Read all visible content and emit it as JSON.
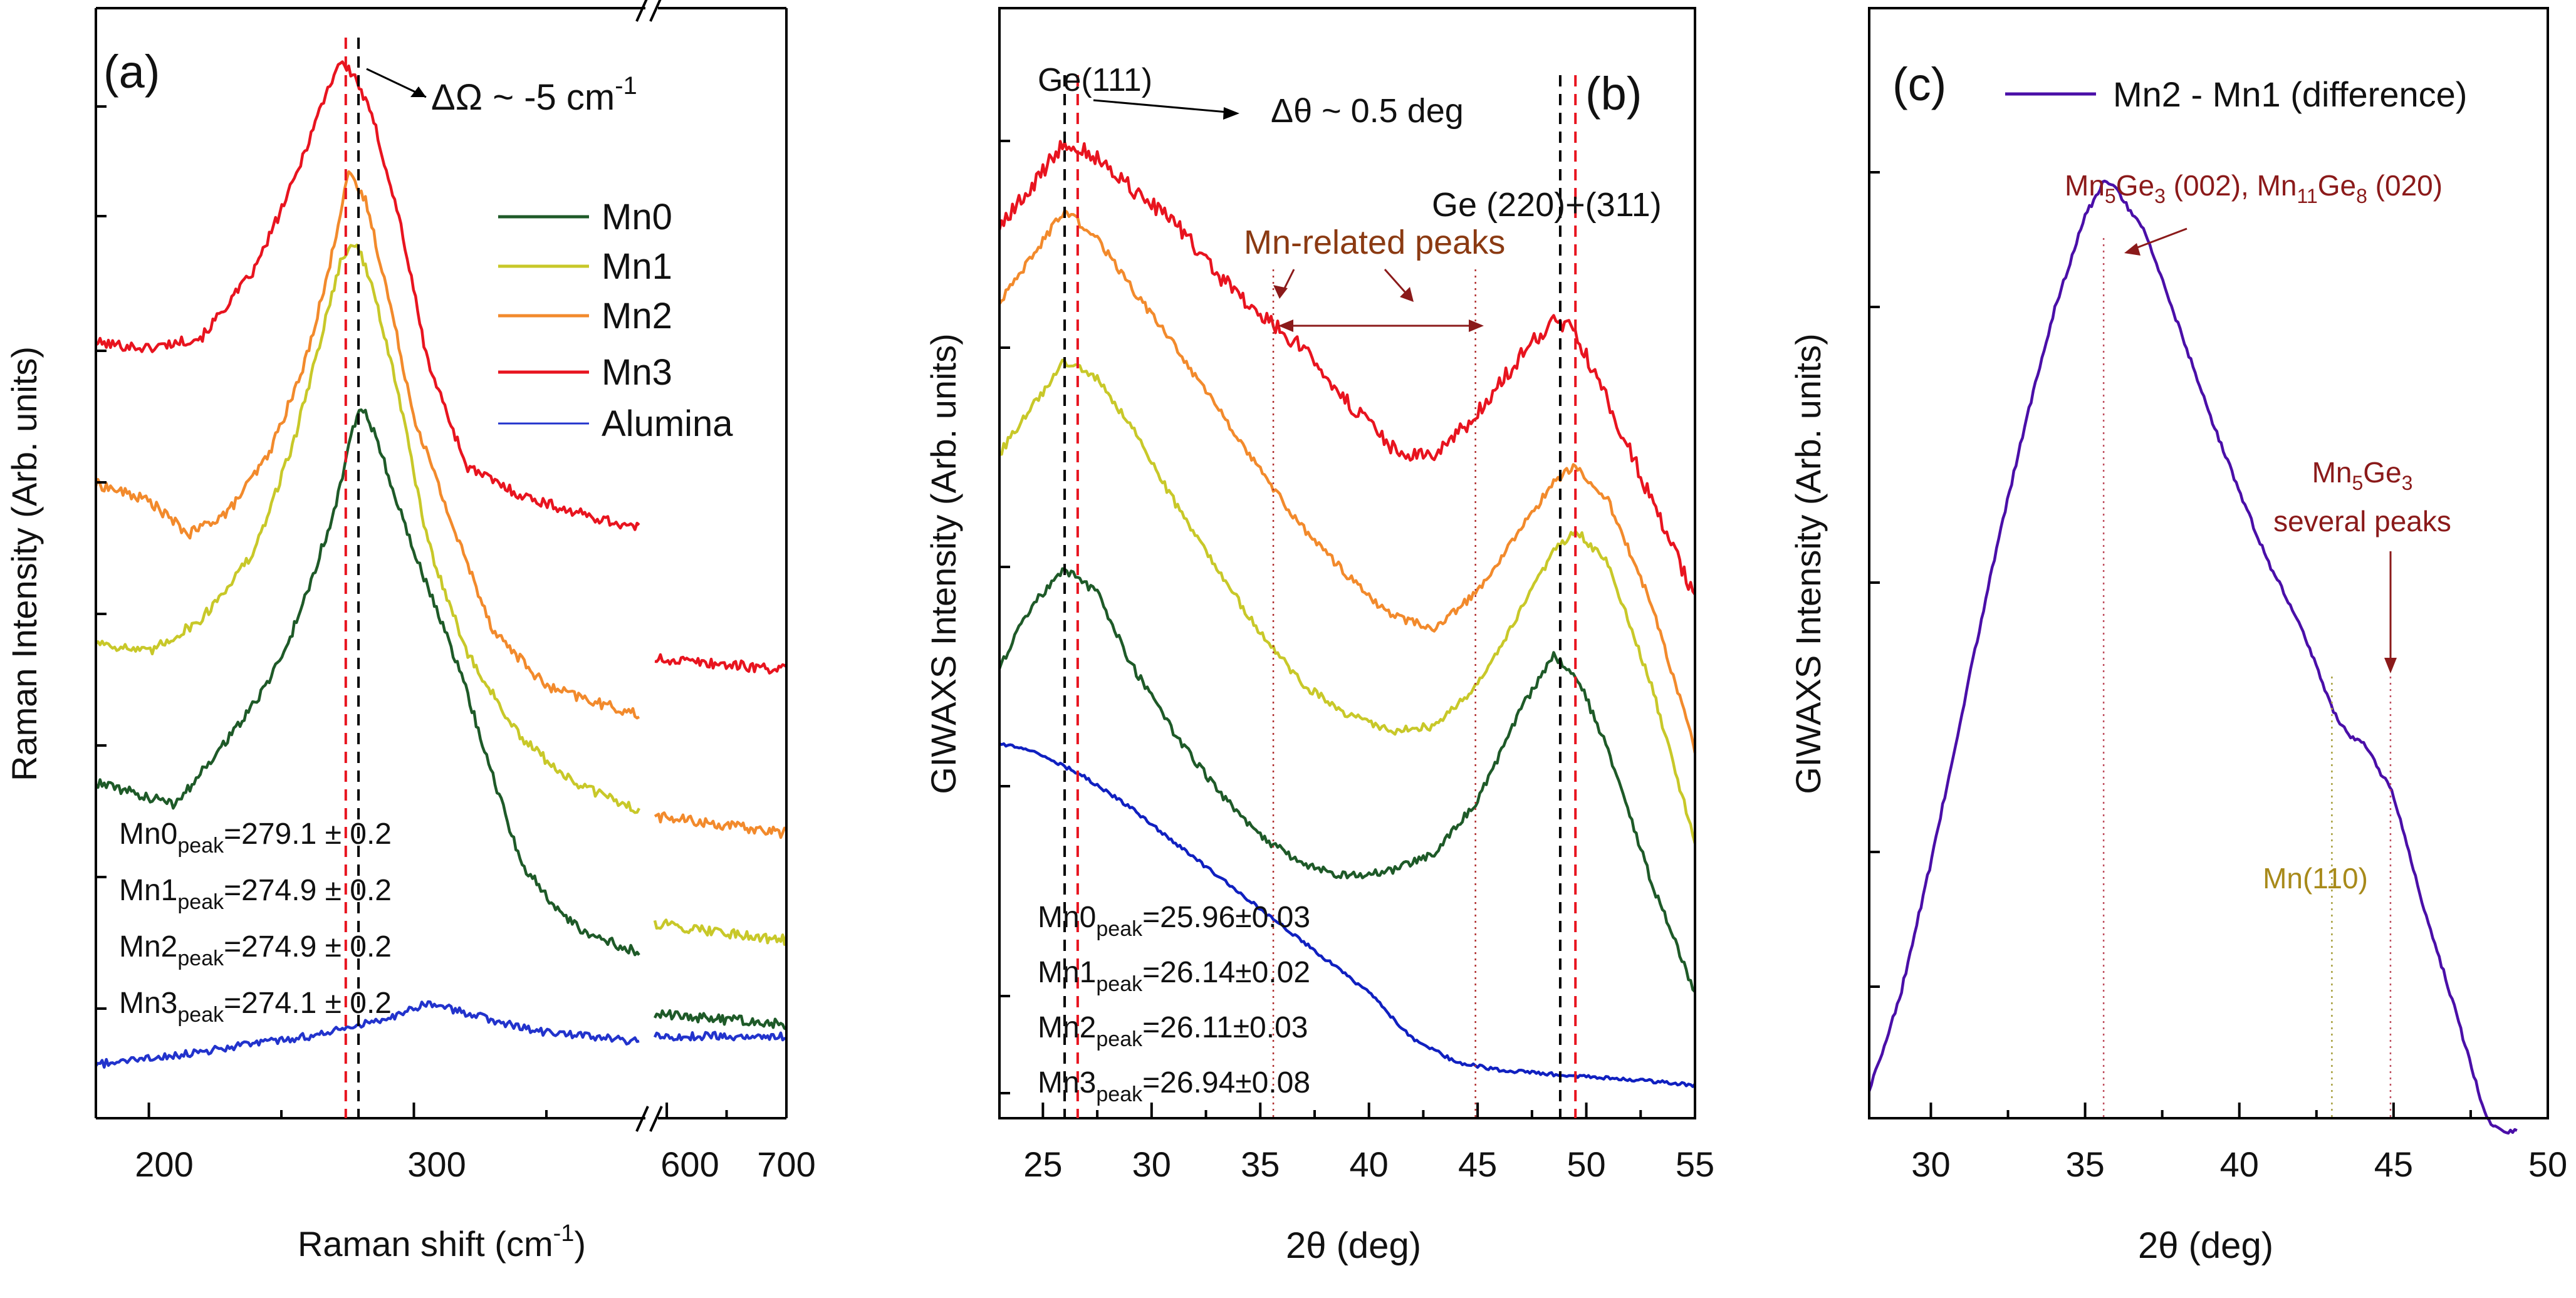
{
  "chart_data": [
    {
      "type": "line",
      "panel_label": "(a)",
      "xlabel_text": "Raman shift (cm",
      "xlabel_sup": "-1",
      "xlabel_end": ")",
      "ylabel": "Raman Intensity (Arb. units)",
      "x_ticks": [
        "200",
        "300",
        "600",
        "700"
      ],
      "x_break": "//",
      "xlim_left": [
        180,
        385
      ],
      "xlim_right": [
        590,
        700
      ],
      "peak_annotation": {
        "prefix": "ΔΩ ~ -5 cm",
        "sup": "-1"
      },
      "peak_lines": {
        "red": 274.3,
        "black": 279.1
      },
      "legend": [
        "Mn0",
        "Mn1",
        "Mn2",
        "Mn3",
        "Alumina"
      ],
      "peak_values": [
        {
          "name": "Mn0",
          "sub": "peak",
          "value": "=279.1 ± 0.2"
        },
        {
          "name": "Mn1",
          "sub": "peak",
          "value": "=274.9 ± 0.2"
        },
        {
          "name": "Mn2",
          "sub": "peak",
          "value": "=274.9 ± 0.2"
        },
        {
          "name": "Mn3",
          "sub": "peak",
          "value": "=274.1 ± 0.2"
        }
      ],
      "series": [
        {
          "name": "Mn3",
          "color": "#e8141f",
          "x": [
            180,
            200,
            220,
            240,
            255,
            265,
            272,
            278,
            285,
            295,
            305,
            320,
            340,
            360,
            385,
            590,
            700
          ],
          "y": [
            5.85,
            5.8,
            5.9,
            6.5,
            7.3,
            7.95,
            8.35,
            8.2,
            7.8,
            6.9,
            5.7,
            4.75,
            4.5,
            4.35,
            4.2,
            3.05,
            2.95
          ]
        },
        {
          "name": "Mn2",
          "color": "#f28a2c",
          "x": [
            180,
            200,
            215,
            230,
            245,
            258,
            268,
            275,
            282,
            290,
            300,
            315,
            330,
            350,
            370,
            385,
            590,
            700
          ],
          "y": [
            4.6,
            4.45,
            4.15,
            4.35,
            4.85,
            5.6,
            6.5,
            7.35,
            7.1,
            6.3,
            5.2,
            4.2,
            3.3,
            2.8,
            2.65,
            2.55,
            1.65,
            1.5
          ]
        },
        {
          "name": "Mn1",
          "color": "#c8c829",
          "x": [
            180,
            200,
            220,
            240,
            255,
            265,
            272,
            278,
            285,
            295,
            305,
            320,
            340,
            360,
            385,
            590,
            700
          ],
          "y": [
            3.2,
            3.1,
            3.4,
            4.0,
            5.0,
            5.9,
            6.55,
            6.75,
            6.3,
            5.3,
            4.1,
            3.1,
            2.35,
            1.95,
            1.7,
            0.7,
            0.55
          ]
        },
        {
          "name": "Mn0",
          "color": "#1e5a28",
          "x": [
            180,
            195,
            210,
            225,
            240,
            252,
            262,
            270,
            276,
            280,
            286,
            295,
            303,
            310,
            320,
            340,
            355,
            365,
            385,
            590,
            700
          ],
          "y": [
            1.95,
            1.85,
            1.75,
            2.2,
            2.65,
            3.15,
            3.8,
            4.35,
            5.0,
            5.3,
            5.0,
            4.35,
            3.8,
            3.4,
            2.75,
            1.25,
            0.8,
            0.6,
            0.45,
            -0.1,
            -0.2
          ]
        },
        {
          "name": "Alumina",
          "color": "#2233cc",
          "x": [
            180,
            200,
            230,
            260,
            280,
            295,
            305,
            320,
            345,
            385,
            590,
            700
          ],
          "y": [
            -0.55,
            -0.5,
            -0.4,
            -0.3,
            -0.2,
            -0.1,
            0.0,
            -0.1,
            -0.25,
            -0.35,
            -0.3,
            -0.3
          ]
        }
      ]
    },
    {
      "type": "line",
      "panel_label": "(b)",
      "xlabel_sym": "2θ (deg)",
      "ylabel": "GIWAXS Intensity (Arb. units)",
      "x_ticks": [
        "25",
        "30",
        "35",
        "40",
        "45",
        "50",
        "55"
      ],
      "xlim": [
        23,
        55
      ],
      "ann_ge111": "Ge(111)",
      "ann_shift": "Δθ ~ 0.5 deg",
      "ann_ge220": "Ge (220)+(311)",
      "ann_mn_related": "Mn-related peaks",
      "black_lines": [
        26.0,
        48.8
      ],
      "red_lines": [
        26.6,
        49.5
      ],
      "dotted_lines": [
        35.6,
        44.9
      ],
      "peak_values": [
        {
          "name": "Mn0",
          "sub": "peak",
          "value": "=25.96±0.03"
        },
        {
          "name": "Mn1",
          "sub": "peak",
          "value": "=26.14±0.02"
        },
        {
          "name": "Mn2",
          "sub": "peak",
          "value": "=26.11±0.03"
        },
        {
          "name": "Mn3",
          "sub": "peak",
          "value": "=26.94±0.08"
        }
      ],
      "series": [
        {
          "name": "Mn3",
          "color": "#e8141f",
          "x": [
            23,
            24.5,
            26,
            27.5,
            29,
            31,
            33,
            35,
            37,
            39,
            41,
            43,
            45,
            47,
            48.5,
            49.5,
            51,
            53,
            55
          ],
          "y": [
            6.55,
            6.9,
            7.3,
            7.15,
            6.9,
            6.6,
            6.15,
            5.8,
            5.5,
            5.05,
            4.65,
            4.55,
            4.95,
            5.45,
            5.75,
            5.65,
            5.05,
            4.2,
            3.35
          ]
        },
        {
          "name": "Mn2",
          "color": "#f28a2c",
          "x": [
            23,
            24.5,
            26,
            27.5,
            29,
            31,
            33,
            35,
            37,
            39,
            41,
            43,
            45,
            47,
            48.5,
            49.5,
            51,
            53,
            55
          ],
          "y": [
            5.9,
            6.3,
            6.7,
            6.45,
            6.05,
            5.55,
            5.0,
            4.45,
            3.95,
            3.55,
            3.2,
            3.1,
            3.4,
            3.95,
            4.35,
            4.5,
            4.2,
            3.3,
            2.05
          ]
        },
        {
          "name": "Mn1",
          "color": "#c8c829",
          "x": [
            23,
            24.5,
            26,
            27.5,
            29,
            31,
            33,
            35,
            37,
            39,
            41,
            43,
            45,
            47,
            48.5,
            49.5,
            51,
            53,
            55
          ],
          "y": [
            4.6,
            5.0,
            5.4,
            5.25,
            4.85,
            4.2,
            3.6,
            3.05,
            2.6,
            2.35,
            2.2,
            2.25,
            2.6,
            3.25,
            3.75,
            3.95,
            3.65,
            2.6,
            1.25
          ]
        },
        {
          "name": "Mn0",
          "color": "#1e5a28",
          "x": [
            23,
            24.5,
            26,
            27.5,
            29,
            31,
            33,
            35,
            37,
            39,
            41,
            43,
            45,
            47,
            48.5,
            49.5,
            51,
            53,
            55
          ],
          "y": [
            2.75,
            3.3,
            3.6,
            3.4,
            2.8,
            2.2,
            1.7,
            1.3,
            1.05,
            0.95,
            1.0,
            1.15,
            1.6,
            2.4,
            2.85,
            2.7,
            2.05,
            0.9,
            -0.05
          ]
        },
        {
          "name": "Alumina",
          "color": "#1020c0",
          "x": [
            23,
            25,
            27,
            29,
            31,
            40,
            42,
            44,
            46,
            48,
            50,
            52,
            55
          ],
          "y": [
            2.1,
            2.0,
            1.8,
            1.55,
            1.25,
            -0.05,
            -0.45,
            -0.65,
            -0.72,
            -0.75,
            -0.78,
            -0.8,
            -0.85
          ]
        }
      ]
    },
    {
      "type": "line",
      "panel_label": "(c)",
      "xlabel_sym": "2θ (deg)",
      "ylabel": "GIWAXS Intensity (Arb. units)",
      "x_ticks": [
        "30",
        "35",
        "40",
        "45",
        "50"
      ],
      "xlim": [
        28,
        50
      ],
      "legend": [
        "Mn2 - Mn1 (difference)"
      ],
      "ann_top": {
        "p1": "Mn",
        "s1": "5",
        "p2": "Ge",
        "s2": "3",
        "p3": " (002),  Mn",
        "s3": "11",
        "p4": "Ge",
        "s4": "8",
        "p5": " (020)"
      },
      "ann_right_1": {
        "p1": "Mn",
        "s1": "5",
        "p2": "Ge",
        "s2": "3"
      },
      "ann_right_2": "several peaks",
      "ann_mn110": "Mn(110)",
      "dotted_lines": [
        35.6,
        43.0,
        44.9
      ],
      "series": [
        {
          "name": "Mn2 - Mn1 (difference)",
          "color": "#4a0fa8",
          "x": [
            28,
            29,
            30,
            31,
            32,
            33,
            34,
            35,
            35.6,
            36,
            37,
            38,
            39,
            40,
            41,
            42,
            43,
            43.5,
            44,
            45,
            46,
            47,
            47.5,
            48,
            48.5,
            49
          ],
          "y": [
            0.2,
            0.9,
            1.9,
            3.0,
            4.1,
            5.1,
            6.0,
            6.7,
            6.95,
            6.9,
            6.55,
            5.9,
            5.25,
            4.65,
            4.1,
            3.65,
            3.05,
            2.85,
            2.8,
            2.4,
            1.55,
            0.8,
            0.4,
            0.0,
            -0.1,
            -0.1
          ]
        }
      ]
    }
  ]
}
